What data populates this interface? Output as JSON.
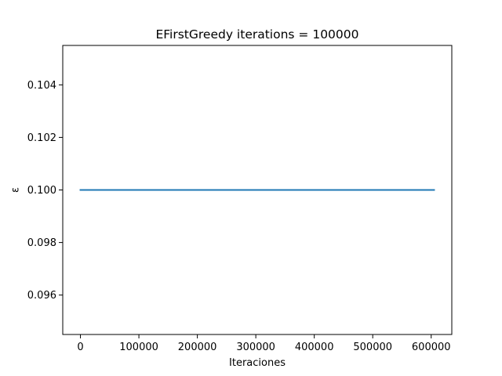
{
  "chart_data": {
    "type": "line",
    "title": "EFirstGreedy iterations = 100000",
    "xlabel": "Iteraciones",
    "ylabel": "ε",
    "xlim": [
      -30250,
      635250
    ],
    "ylim": [
      0.0945,
      0.1055
    ],
    "x_ticks": [
      0,
      100000,
      200000,
      300000,
      400000,
      500000,
      600000
    ],
    "x_tick_labels": [
      "0",
      "100000",
      "200000",
      "300000",
      "400000",
      "500000",
      "600000"
    ],
    "y_ticks": [
      0.096,
      0.098,
      0.1,
      0.102,
      0.104
    ],
    "y_tick_labels": [
      "0.096",
      "0.098",
      "0.100",
      "0.102",
      "0.104"
    ],
    "grid": false,
    "series": [
      {
        "color": "#1f77b4",
        "x": [
          0,
          605000
        ],
        "y": [
          0.1,
          0.1
        ]
      }
    ]
  }
}
